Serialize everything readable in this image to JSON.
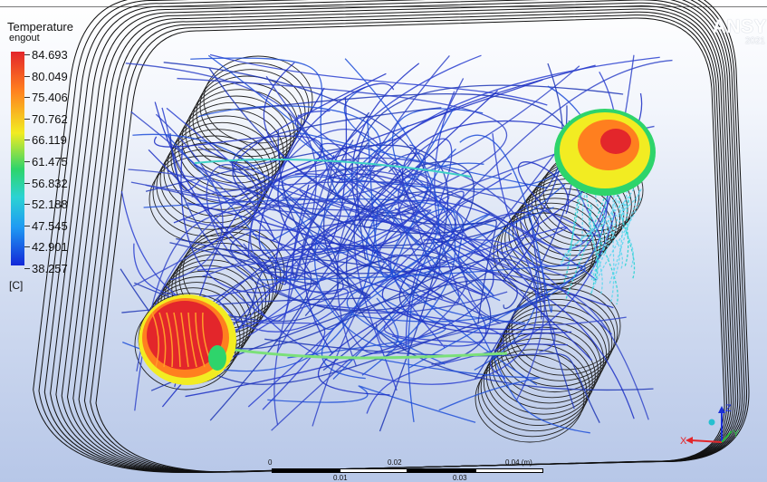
{
  "brand": {
    "name": "ANSY",
    "version": "2021"
  },
  "legend": {
    "title": "Temperature",
    "variable": "engout",
    "unit": "[C]",
    "ticks": [
      "84.693",
      "80.049",
      "75.406",
      "70.762",
      "66.119",
      "61.475",
      "56.832",
      "52.188",
      "47.545",
      "42.901",
      "38.257"
    ]
  },
  "scale_bar": {
    "top_labels": [
      "0",
      "0.02",
      "0.04 (m)"
    ],
    "bottom_labels": [
      "0.01",
      "0.03"
    ]
  },
  "triad": {
    "x": "X",
    "y": "Y",
    "z": "Z"
  },
  "colors": {
    "streamline": "#2a3fc9",
    "winding": "#111111",
    "hot": "#e3262b",
    "mid": "#f2ec22",
    "cool": "#2bd3d3"
  }
}
